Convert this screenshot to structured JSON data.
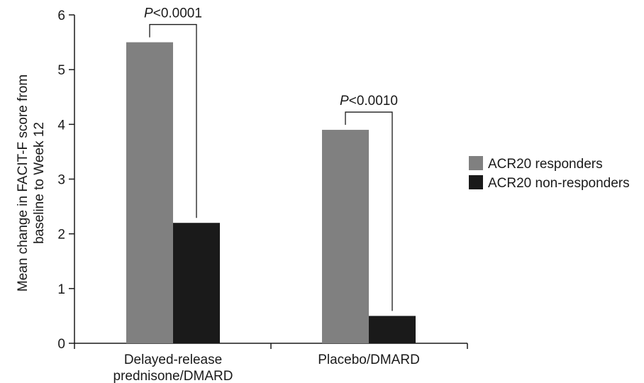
{
  "chart_data": {
    "type": "bar",
    "title": "",
    "xlabel": "",
    "ylabel": [
      "Mean change in FACIT-F score from",
      "baseline to Week 12"
    ],
    "ylim": [
      0,
      6
    ],
    "yticks": [
      "0",
      "1",
      "2",
      "3",
      "4",
      "5",
      "6"
    ],
    "categories": [
      [
        "Delayed-release",
        "prednisone/DMARD"
      ],
      [
        "Placebo/DMARD"
      ]
    ],
    "series": [
      {
        "name": "ACR20 responders",
        "color": "#808080",
        "values": [
          5.5,
          3.9
        ]
      },
      {
        "name": "ACR20 non-responders",
        "color": "#1a1a1a",
        "values": [
          2.2,
          0.5
        ]
      }
    ],
    "annotations": [
      {
        "category_index": 0,
        "p_label": "P",
        "p_value": "<0.0001"
      },
      {
        "category_index": 1,
        "p_label": "P",
        "p_value": "<0.0010"
      }
    ],
    "legend_position": "right",
    "grid": false
  }
}
